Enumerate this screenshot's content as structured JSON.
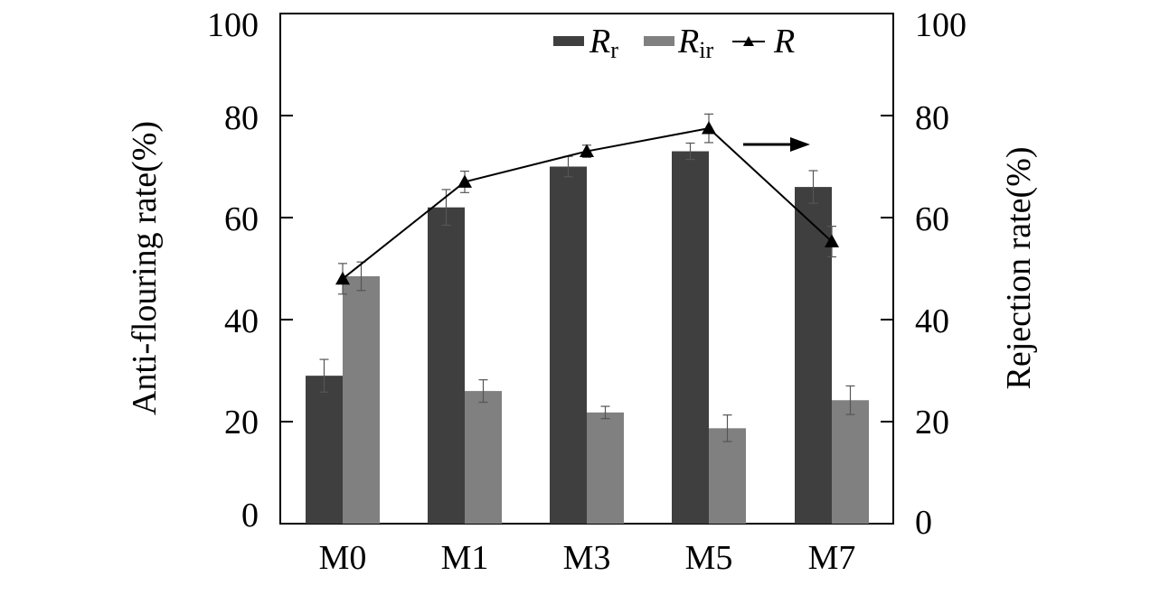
{
  "chart_data": {
    "type": "bar",
    "categories": [
      "M0",
      "M1",
      "M3",
      "M5",
      "M7"
    ],
    "ylabel_left": "Anti-flouring rate(%)",
    "ylabel_right": "Rejection rate(%)",
    "ylim_left": [
      0,
      100
    ],
    "ylim_right": [
      0,
      100
    ],
    "yticks": [
      "0",
      "20",
      "40",
      "60",
      "80",
      "100"
    ],
    "series": [
      {
        "name": "R_r",
        "legend_main": "R",
        "legend_sub": "r",
        "type": "bar",
        "color": "#3f3f3f",
        "values": [
          29,
          62,
          70,
          73,
          66
        ],
        "errors": [
          3.2,
          3.5,
          2.0,
          1.6,
          3.2
        ]
      },
      {
        "name": "R_ir",
        "legend_main": "R",
        "legend_sub": "ir",
        "type": "bar",
        "color": "#808080",
        "values": [
          48.5,
          26,
          21.8,
          18.7,
          24.2
        ],
        "errors": [
          2.8,
          2.2,
          1.2,
          2.6,
          2.8
        ]
      },
      {
        "name": "R",
        "legend_main": "R",
        "legend_sub": "",
        "type": "line",
        "axis": "right",
        "color": "#000000",
        "marker": "triangle",
        "values": [
          48,
          67,
          73,
          77.5,
          55.3
        ],
        "errors": [
          3.0,
          2.1,
          1.2,
          2.8,
          3.0
        ]
      }
    ],
    "annotation": "arrow pointing right indicating line series uses right axis",
    "legend_position": "top-center"
  }
}
